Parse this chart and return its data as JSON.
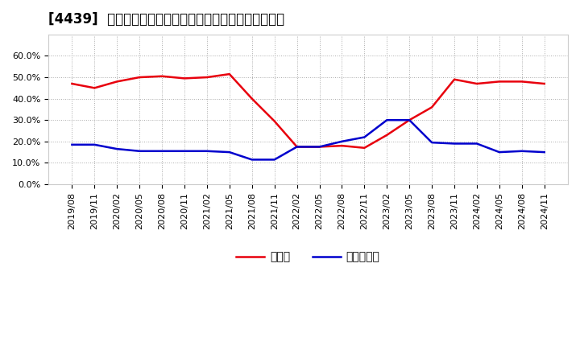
{
  "title": "[4439]  現預金、有利子負債の総資産に対する比率の推移",
  "x_labels": [
    "2019/08",
    "2019/11",
    "2020/02",
    "2020/05",
    "2020/08",
    "2020/11",
    "2021/02",
    "2021/05",
    "2021/08",
    "2021/11",
    "2022/02",
    "2022/05",
    "2022/08",
    "2022/11",
    "2023/02",
    "2023/05",
    "2023/08",
    "2023/11",
    "2024/02",
    "2024/05",
    "2024/08",
    "2024/11"
  ],
  "cash": [
    0.47,
    0.45,
    0.48,
    0.5,
    0.505,
    0.495,
    0.5,
    0.515,
    0.4,
    0.295,
    0.175,
    0.175,
    0.18,
    0.17,
    0.23,
    0.3,
    0.36,
    0.49,
    0.47,
    0.48,
    0.48,
    0.47
  ],
  "debt": [
    0.185,
    0.185,
    0.165,
    0.155,
    0.155,
    0.155,
    0.155,
    0.15,
    0.115,
    0.115,
    0.175,
    0.175,
    0.2,
    0.22,
    0.3,
    0.3,
    0.195,
    0.19,
    0.19,
    0.15,
    0.155,
    0.15
  ],
  "cash_color": "#e8000d",
  "debt_color": "#0000cd",
  "background_color": "#ffffff",
  "grid_color": "#aaaaaa",
  "ylim": [
    0.0,
    0.7
  ],
  "yticks": [
    0.0,
    0.1,
    0.2,
    0.3,
    0.4,
    0.5,
    0.6
  ],
  "legend_cash": "現預金",
  "legend_debt": "有利子負債",
  "title_fontsize": 12,
  "label_fontsize": 8,
  "legend_fontsize": 10
}
